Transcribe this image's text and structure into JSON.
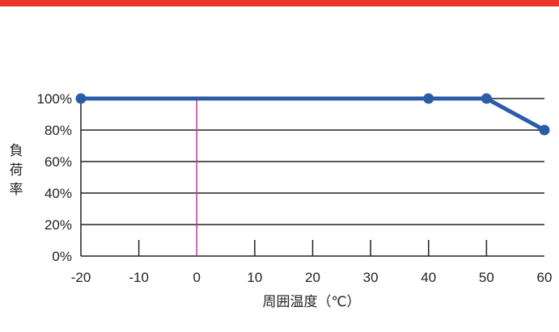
{
  "colors": {
    "top_bar": "#e8352b",
    "series": "#2b5ca8",
    "reference_line": "#cc3399",
    "grid": "#222222"
  },
  "chart_data": {
    "type": "line",
    "title": "",
    "xlabel": "周囲温度（℃）",
    "ylabel": "負荷率",
    "xlim": [
      -20,
      60
    ],
    "ylim": [
      0,
      100
    ],
    "x_ticks": [
      -20,
      -10,
      0,
      10,
      20,
      30,
      40,
      50,
      60
    ],
    "x_tick_labels": [
      "-20",
      "-10",
      "0",
      "10",
      "20",
      "30",
      "40",
      "50",
      "60"
    ],
    "y_ticks": [
      0,
      20,
      40,
      60,
      80,
      100
    ],
    "y_tick_labels": [
      "0%",
      "20%",
      "40%",
      "60%",
      "80%",
      "100%"
    ],
    "grid": "horizontal",
    "reference_line_x": 0,
    "series": [
      {
        "x": [
          -20,
          40,
          50,
          60
        ],
        "y": [
          100,
          100,
          100,
          80
        ]
      }
    ]
  }
}
